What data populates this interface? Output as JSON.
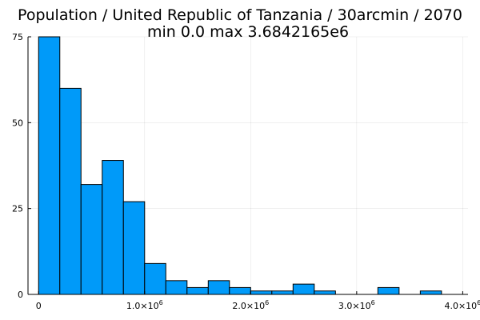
{
  "chart_data": {
    "type": "bar",
    "title_line1": "Population / United Republic of Tanzania / 30arcmin / 2070",
    "title_line2": "min 0.0  max 3.6842165e6",
    "xlabel": "",
    "ylabel": "",
    "bin_width": 200000,
    "bin_start": 0,
    "values": [
      75,
      60,
      32,
      39,
      27,
      9,
      4,
      2,
      4,
      2,
      1,
      1,
      3,
      1,
      0,
      0,
      2,
      0,
      1
    ],
    "xlim": [
      -100000,
      4050000
    ],
    "ylim": [
      0,
      75
    ],
    "xticks": [
      {
        "value": 0,
        "mantissa": "0",
        "exp": ""
      },
      {
        "value": 1000000,
        "mantissa": "1.0×10",
        "exp": "6"
      },
      {
        "value": 2000000,
        "mantissa": "2.0×10",
        "exp": "6"
      },
      {
        "value": 3000000,
        "mantissa": "3.0×10",
        "exp": "6"
      },
      {
        "value": 4000000,
        "mantissa": "4.0×10",
        "exp": "6"
      }
    ],
    "yticks": [
      {
        "value": 0,
        "label": "0"
      },
      {
        "value": 25,
        "label": "25"
      },
      {
        "value": 50,
        "label": "50"
      },
      {
        "value": 75,
        "label": "75"
      }
    ],
    "grid": true,
    "legend": "none",
    "bar_color": "#009af9"
  }
}
